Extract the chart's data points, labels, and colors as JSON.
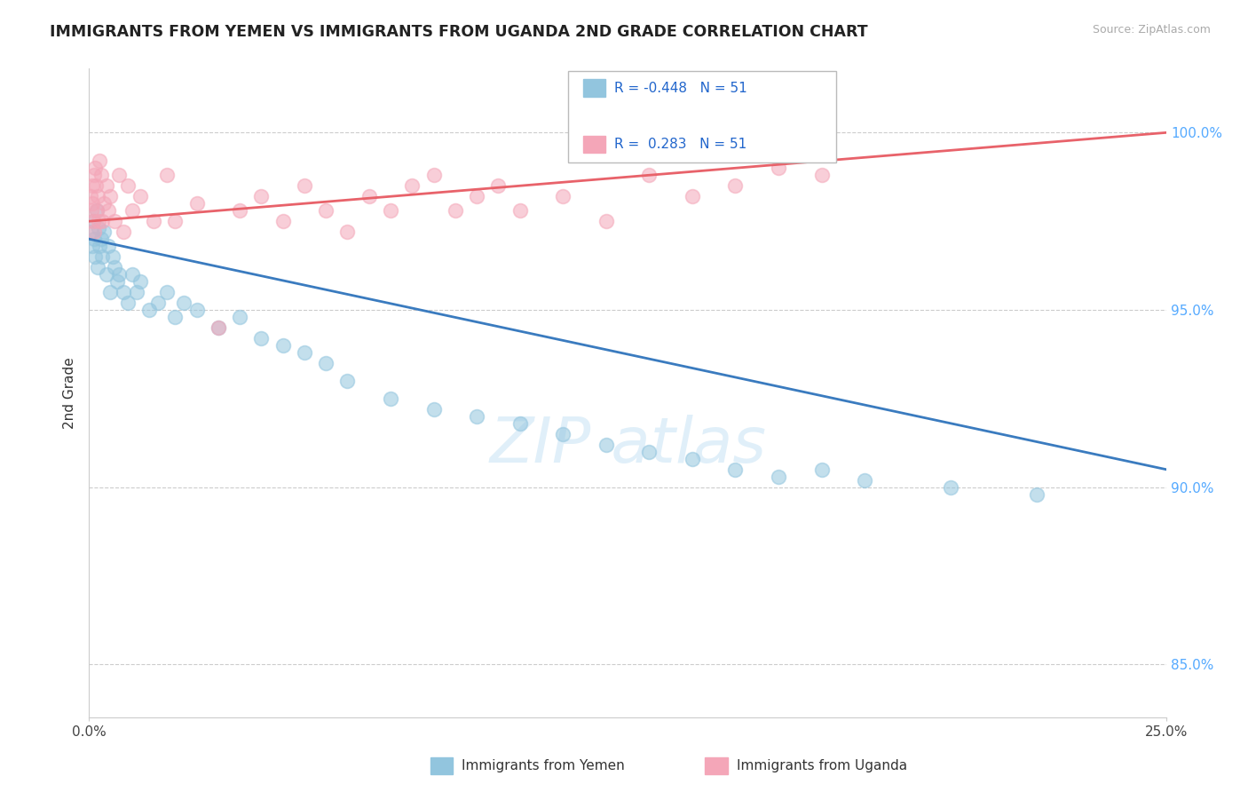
{
  "title": "IMMIGRANTS FROM YEMEN VS IMMIGRANTS FROM UGANDA 2ND GRADE CORRELATION CHART",
  "source": "Source: ZipAtlas.com",
  "ylabel": "2nd Grade",
  "xlim": [
    0.0,
    25.0
  ],
  "ylim": [
    83.5,
    101.8
  ],
  "yticks": [
    85.0,
    90.0,
    95.0,
    100.0
  ],
  "ytick_labels": [
    "85.0%",
    "90.0%",
    "95.0%",
    "100.0%"
  ],
  "r_yemen": -0.448,
  "r_uganda": 0.283,
  "n": 51,
  "legend_label_yemen": "Immigrants from Yemen",
  "legend_label_uganda": "Immigrants from Uganda",
  "blue_color": "#92c5de",
  "pink_color": "#f4a6b8",
  "blue_line_color": "#3a7bbf",
  "pink_line_color": "#e8626a",
  "yemen_x": [
    0.05,
    0.08,
    0.1,
    0.12,
    0.15,
    0.18,
    0.2,
    0.22,
    0.25,
    0.28,
    0.3,
    0.35,
    0.4,
    0.45,
    0.5,
    0.55,
    0.6,
    0.65,
    0.7,
    0.8,
    0.9,
    1.0,
    1.1,
    1.2,
    1.4,
    1.6,
    1.8,
    2.0,
    2.2,
    2.5,
    3.0,
    3.5,
    4.0,
    4.5,
    5.0,
    5.5,
    6.0,
    7.0,
    8.0,
    9.0,
    10.0,
    11.0,
    12.0,
    13.0,
    14.0,
    15.0,
    16.0,
    17.0,
    18.0,
    20.0,
    22.0
  ],
  "yemen_y": [
    97.2,
    96.8,
    97.5,
    97.0,
    96.5,
    97.8,
    96.2,
    97.3,
    96.8,
    97.0,
    96.5,
    97.2,
    96.0,
    96.8,
    95.5,
    96.5,
    96.2,
    95.8,
    96.0,
    95.5,
    95.2,
    96.0,
    95.5,
    95.8,
    95.0,
    95.2,
    95.5,
    94.8,
    95.2,
    95.0,
    94.5,
    94.8,
    94.2,
    94.0,
    93.8,
    93.5,
    93.0,
    92.5,
    92.2,
    92.0,
    91.8,
    91.5,
    91.2,
    91.0,
    90.8,
    90.5,
    90.3,
    90.5,
    90.2,
    90.0,
    89.8
  ],
  "uganda_x": [
    0.03,
    0.05,
    0.07,
    0.08,
    0.1,
    0.12,
    0.13,
    0.15,
    0.17,
    0.18,
    0.2,
    0.22,
    0.25,
    0.28,
    0.3,
    0.35,
    0.4,
    0.45,
    0.5,
    0.6,
    0.7,
    0.8,
    0.9,
    1.0,
    1.2,
    1.5,
    1.8,
    2.0,
    2.5,
    3.0,
    3.5,
    4.0,
    4.5,
    5.0,
    5.5,
    6.0,
    6.5,
    7.0,
    7.5,
    8.0,
    8.5,
    9.0,
    9.5,
    10.0,
    11.0,
    12.0,
    13.0,
    14.0,
    15.0,
    16.0,
    17.0
  ],
  "uganda_y": [
    98.2,
    97.8,
    98.5,
    98.0,
    97.5,
    98.8,
    97.2,
    99.0,
    98.5,
    97.8,
    98.2,
    97.5,
    99.2,
    98.8,
    97.5,
    98.0,
    98.5,
    97.8,
    98.2,
    97.5,
    98.8,
    97.2,
    98.5,
    97.8,
    98.2,
    97.5,
    98.8,
    97.5,
    98.0,
    94.5,
    97.8,
    98.2,
    97.5,
    98.5,
    97.8,
    97.2,
    98.2,
    97.8,
    98.5,
    98.8,
    97.8,
    98.2,
    98.5,
    97.8,
    98.2,
    97.5,
    98.8,
    98.2,
    98.5,
    99.0,
    98.8
  ],
  "blue_line_x0": 0.0,
  "blue_line_y0": 97.0,
  "blue_line_x1": 25.0,
  "blue_line_y1": 90.5,
  "pink_line_x0": 0.0,
  "pink_line_y0": 97.5,
  "pink_line_x1": 25.0,
  "pink_line_y1": 100.0
}
